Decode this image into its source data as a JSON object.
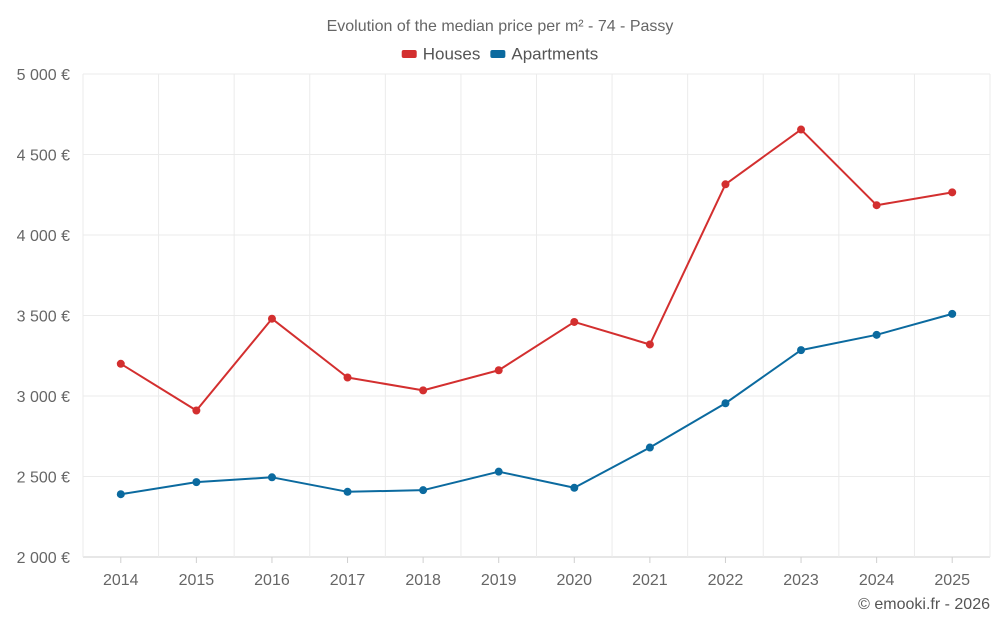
{
  "chart_data": {
    "type": "line",
    "title": "Evolution of the median price per m² - 74 - Passy",
    "categories": [
      "2014",
      "2015",
      "2016",
      "2017",
      "2018",
      "2019",
      "2020",
      "2021",
      "2022",
      "2023",
      "2024",
      "2025"
    ],
    "ylim": [
      2000,
      5000
    ],
    "yticks": [
      2000,
      2500,
      3000,
      3500,
      4000,
      4500,
      5000
    ],
    "ytick_labels": [
      "2 000 €",
      "2 500 €",
      "3 000 €",
      "3 500 €",
      "4 000 €",
      "4 500 €",
      "5 000 €"
    ],
    "grid": true,
    "legend_position": "top-center",
    "series": [
      {
        "name": "Houses",
        "color": "#d32f2f",
        "values": [
          3200,
          2910,
          3480,
          3115,
          3035,
          3160,
          3460,
          3320,
          4315,
          4655,
          4185,
          4265
        ]
      },
      {
        "name": "Apartments",
        "color": "#0b6a9f",
        "values": [
          2390,
          2465,
          2495,
          2405,
          2415,
          2530,
          2430,
          2680,
          2955,
          3285,
          3380,
          3510
        ]
      }
    ],
    "credit": "© emooki.fr - 2026"
  }
}
